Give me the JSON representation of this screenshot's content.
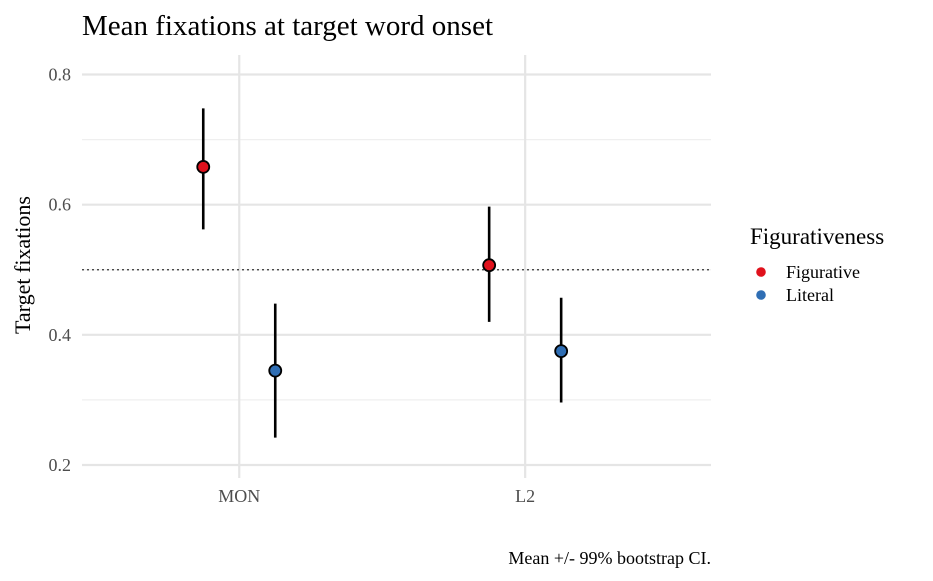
{
  "chart_data": {
    "type": "scatter",
    "title": "Mean fixations at target word onset",
    "xlabel": "",
    "ylabel": "Target fixations",
    "caption": "Mean +/- 99% bootstrap CI.",
    "categories": [
      "MON",
      "L2"
    ],
    "ylim": [
      0.18,
      0.83
    ],
    "yticks": [
      0.2,
      0.4,
      0.6,
      0.8
    ],
    "ytick_labels": [
      "0.2",
      "0.4",
      "0.6",
      "0.8"
    ],
    "reference_line": 0.5,
    "grid": true,
    "legend": {
      "title": "Figurativeness",
      "position": "right"
    },
    "series": [
      {
        "name": "Figurative",
        "color": "#e0111c",
        "values": [
          0.658,
          0.507
        ],
        "lower": [
          0.562,
          0.42
        ],
        "upper": [
          0.748,
          0.597
        ]
      },
      {
        "name": "Literal",
        "color": "#2f6eb4",
        "values": [
          0.345,
          0.375
        ],
        "lower": [
          0.242,
          0.296
        ],
        "upper": [
          0.448,
          0.457
        ]
      }
    ]
  }
}
